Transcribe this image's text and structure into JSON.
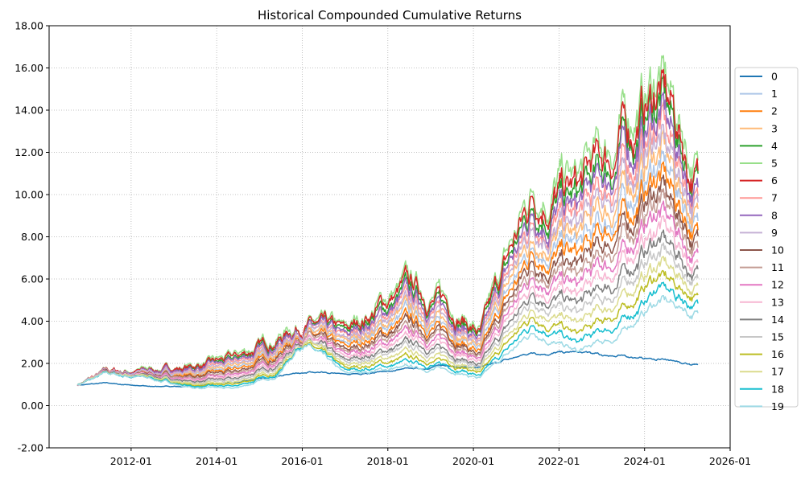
{
  "chart_data": {
    "type": "line",
    "title": "Historical Compounded Cumulative Returns",
    "xlabel": "",
    "ylabel": "",
    "ylim": [
      -2,
      18
    ],
    "xlim": [
      "2010-02",
      "2026-01"
    ],
    "grid": true,
    "legend_placement": "right",
    "y_ticks": [
      "-2.00",
      "0.00",
      "2.00",
      "4.00",
      "6.00",
      "8.00",
      "10.00",
      "12.00",
      "14.00",
      "16.00",
      "18.00"
    ],
    "x_ticks": [
      "2012-01",
      "2014-01",
      "2016-01",
      "2018-01",
      "2020-01",
      "2022-01",
      "2024-01",
      "2026-01"
    ],
    "x": [
      "2010-10",
      "2011-06",
      "2012-06",
      "2013-06",
      "2014-06",
      "2015-06",
      "2016-01",
      "2017-01",
      "2018-06",
      "2019-06",
      "2020-03",
      "2021-06",
      "2022-06",
      "2023-06",
      "2024-05",
      "2025-04"
    ],
    "series": [
      {
        "name": "0",
        "color": "#1f77b4",
        "values": [
          1.0,
          1.05,
          0.92,
          0.92,
          1.1,
          1.4,
          1.6,
          1.45,
          1.7,
          1.9,
          1.8,
          2.5,
          2.5,
          2.35,
          2.2,
          1.9
        ]
      },
      {
        "name": "1",
        "color": "#aec7e8",
        "values": [
          1.0,
          1.56,
          1.55,
          1.49,
          1.72,
          2.56,
          3.61,
          2.72,
          4.25,
          3.72,
          2.65,
          7.78,
          7.39,
          9.23,
          11.6,
          8.4
        ]
      },
      {
        "name": "2",
        "color": "#ff7f0e",
        "values": [
          1.0,
          1.56,
          1.52,
          1.44,
          1.64,
          2.45,
          3.55,
          2.61,
          4.02,
          3.54,
          2.52,
          7.39,
          6.95,
          8.69,
          11.0,
          8.02
        ]
      },
      {
        "name": "3",
        "color": "#ffbb78",
        "values": [
          1.0,
          1.57,
          1.57,
          1.55,
          1.8,
          2.66,
          3.66,
          2.83,
          4.47,
          3.9,
          2.77,
          8.17,
          7.84,
          9.77,
          12.2,
          8.77
        ]
      },
      {
        "name": "4",
        "color": "#2ca02c",
        "values": [
          1.0,
          1.59,
          1.66,
          1.78,
          2.13,
          3.09,
          3.89,
          3.28,
          5.36,
          4.63,
          3.26,
          9.72,
          9.61,
          11.92,
          14.6,
          10.26
        ]
      },
      {
        "name": "5",
        "color": "#98df8a",
        "values": [
          1.0,
          1.6,
          1.7,
          1.9,
          2.3,
          3.3,
          4.0,
          3.5,
          5.8,
          5.0,
          3.5,
          10.5,
          10.5,
          13.0,
          15.8,
          11.0
        ]
      },
      {
        "name": "6",
        "color": "#d62728",
        "values": [
          1.0,
          1.59,
          1.68,
          1.84,
          2.22,
          3.19,
          3.94,
          3.39,
          5.58,
          4.82,
          3.38,
          10.11,
          10.06,
          12.46,
          15.2,
          10.63
        ]
      },
      {
        "name": "7",
        "color": "#ff9896",
        "values": [
          1.0,
          1.58,
          1.61,
          1.67,
          1.97,
          2.88,
          3.78,
          3.06,
          4.91,
          4.27,
          3.01,
          8.94,
          8.72,
          10.84,
          13.4,
          9.51
        ]
      },
      {
        "name": "8",
        "color": "#9467bd",
        "values": [
          1.0,
          1.58,
          1.63,
          1.73,
          2.05,
          2.98,
          3.83,
          3.17,
          5.13,
          4.45,
          3.13,
          9.33,
          9.17,
          11.38,
          14.0,
          9.88
        ]
      },
      {
        "name": "9",
        "color": "#c5b0d5",
        "values": [
          1.0,
          1.57,
          1.59,
          1.61,
          1.89,
          2.77,
          3.72,
          2.95,
          4.69,
          4.09,
          2.89,
          8.56,
          8.28,
          10.31,
          12.8,
          9.14
        ]
      },
      {
        "name": "10",
        "color": "#8c564b",
        "values": [
          1.0,
          1.55,
          1.5,
          1.38,
          1.55,
          2.35,
          3.5,
          2.5,
          3.8,
          3.35,
          2.4,
          7.0,
          6.5,
          8.15,
          10.4,
          7.65
        ]
      },
      {
        "name": "11",
        "color": "#c49c94",
        "values": [
          1.0,
          1.54,
          1.48,
          1.32,
          1.47,
          2.24,
          3.44,
          2.39,
          3.58,
          3.17,
          2.28,
          6.61,
          6.06,
          7.61,
          9.8,
          7.28
        ]
      },
      {
        "name": "12",
        "color": "#e377c2",
        "values": [
          1.0,
          1.54,
          1.46,
          1.26,
          1.39,
          2.13,
          3.38,
          2.28,
          3.36,
          2.99,
          2.16,
          6.22,
          5.62,
          7.07,
          9.2,
          6.91
        ]
      },
      {
        "name": "13",
        "color": "#f7b6d2",
        "values": [
          1.0,
          1.53,
          1.44,
          1.2,
          1.3,
          2.03,
          3.33,
          2.17,
          3.14,
          2.8,
          2.04,
          5.83,
          5.17,
          6.53,
          8.6,
          6.54
        ]
      },
      {
        "name": "14",
        "color": "#7f7f7f",
        "values": [
          1.0,
          1.53,
          1.41,
          1.15,
          1.22,
          1.92,
          3.27,
          2.06,
          2.91,
          2.62,
          1.91,
          5.44,
          4.73,
          5.99,
          8.0,
          6.16
        ]
      },
      {
        "name": "15",
        "color": "#c7c7c7",
        "values": [
          1.0,
          1.52,
          1.39,
          1.09,
          1.14,
          1.82,
          3.22,
          1.94,
          2.69,
          2.44,
          1.79,
          5.06,
          4.28,
          5.45,
          7.4,
          5.79
        ]
      },
      {
        "name": "16",
        "color": "#bcbd22",
        "values": [
          1.0,
          1.51,
          1.35,
          0.97,
          0.97,
          1.6,
          3.11,
          1.72,
          2.25,
          2.07,
          1.54,
          4.28,
          3.39,
          4.38,
          6.2,
          5.05
        ]
      },
      {
        "name": "17",
        "color": "#dbdb8d",
        "values": [
          1.0,
          1.52,
          1.37,
          1.03,
          1.05,
          1.71,
          3.16,
          1.83,
          2.47,
          2.25,
          1.67,
          4.67,
          3.84,
          4.92,
          6.8,
          5.42
        ]
      },
      {
        "name": "18",
        "color": "#17becf",
        "values": [
          1.0,
          1.51,
          1.32,
          0.91,
          0.89,
          1.5,
          3.05,
          1.61,
          2.02,
          1.89,
          1.42,
          3.89,
          2.95,
          3.84,
          5.6,
          4.67
        ]
      },
      {
        "name": "19",
        "color": "#9edae5",
        "values": [
          1.0,
          1.5,
          1.3,
          0.85,
          0.8,
          1.4,
          3.0,
          1.5,
          1.8,
          1.7,
          1.3,
          3.5,
          2.5,
          3.3,
          5.0,
          4.3
        ]
      }
    ]
  }
}
